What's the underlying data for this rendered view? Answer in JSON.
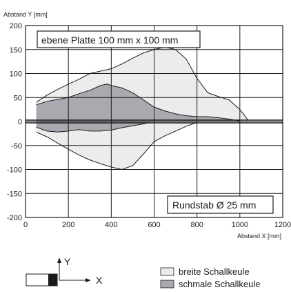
{
  "chart_data": {
    "type": "area",
    "ylabel": "Abstand Y [mm]",
    "xlabel": "Abstand X [mm]",
    "xlim": [
      0,
      1200
    ],
    "ylim": [
      -200,
      200
    ],
    "x_ticks": [
      0,
      200,
      400,
      600,
      800,
      1000,
      1200
    ],
    "y_ticks": [
      200,
      150,
      100,
      50,
      0,
      -50,
      -100,
      -150,
      -200
    ],
    "grid": true,
    "annotations": {
      "top": "ebene Platte 100 mm x 100 mm",
      "bottom": "Rundstab Ø 25 mm"
    },
    "series": [
      {
        "name": "breite Schallkeule",
        "color": "#ececec",
        "upper": [
          [
            50,
            40
          ],
          [
            100,
            55
          ],
          [
            150,
            67
          ],
          [
            200,
            78
          ],
          [
            250,
            88
          ],
          [
            300,
            100
          ],
          [
            350,
            105
          ],
          [
            400,
            110
          ],
          [
            450,
            120
          ],
          [
            500,
            132
          ],
          [
            550,
            143
          ],
          [
            600,
            150
          ],
          [
            650,
            155
          ],
          [
            700,
            150
          ],
          [
            750,
            130
          ],
          [
            800,
            90
          ],
          [
            850,
            60
          ],
          [
            900,
            52
          ],
          [
            950,
            45
          ],
          [
            1000,
            25
          ],
          [
            1040,
            2
          ]
        ],
        "lower": [
          [
            50,
            -22
          ],
          [
            100,
            -32
          ],
          [
            150,
            -45
          ],
          [
            200,
            -58
          ],
          [
            250,
            -70
          ],
          [
            300,
            -80
          ],
          [
            350,
            -88
          ],
          [
            400,
            -95
          ],
          [
            450,
            -100
          ],
          [
            500,
            -92
          ],
          [
            550,
            -68
          ],
          [
            600,
            -42
          ],
          [
            650,
            -30
          ],
          [
            700,
            -20
          ],
          [
            750,
            -10
          ],
          [
            800,
            -2
          ]
        ]
      },
      {
        "name": "schmale Schallkeule",
        "color": "#a9a9af",
        "upper": [
          [
            50,
            35
          ],
          [
            100,
            42
          ],
          [
            150,
            46
          ],
          [
            200,
            50
          ],
          [
            250,
            58
          ],
          [
            300,
            65
          ],
          [
            350,
            75
          ],
          [
            380,
            78
          ],
          [
            400,
            75
          ],
          [
            450,
            70
          ],
          [
            500,
            60
          ],
          [
            550,
            45
          ],
          [
            600,
            30
          ],
          [
            650,
            22
          ],
          [
            700,
            16
          ],
          [
            750,
            12
          ],
          [
            800,
            10
          ],
          [
            850,
            10
          ],
          [
            900,
            8
          ],
          [
            950,
            5
          ],
          [
            1000,
            1
          ]
        ],
        "lower": [
          [
            50,
            -12
          ],
          [
            100,
            -20
          ],
          [
            150,
            -22
          ],
          [
            200,
            -20
          ],
          [
            250,
            -17
          ],
          [
            300,
            -20
          ],
          [
            350,
            -20
          ],
          [
            400,
            -18
          ],
          [
            450,
            -13
          ],
          [
            500,
            -9
          ],
          [
            550,
            -5
          ],
          [
            580,
            -2
          ]
        ]
      }
    ]
  },
  "legend": {
    "items": [
      {
        "label": "breite Schallkeule",
        "color": "#ececec"
      },
      {
        "label": "schmale Schallkeule",
        "color": "#a9a9af"
      }
    ]
  },
  "diagram": {
    "y_axis_label": "Y",
    "x_axis_label": "X"
  }
}
